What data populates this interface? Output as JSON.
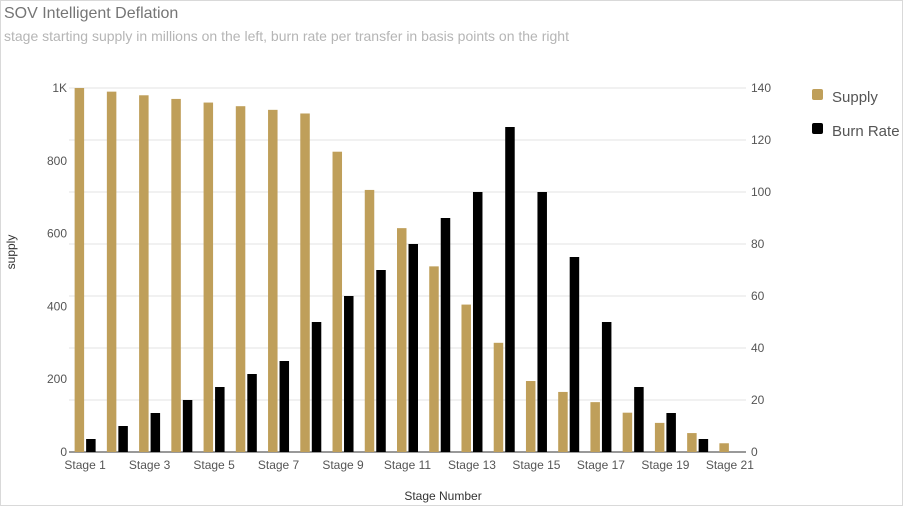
{
  "chart_data": {
    "type": "bar",
    "title": "SOV Intelligent Deflation",
    "subtitle": "stage starting supply in millions on the left, burn rate per transfer in basis points on the right",
    "xlabel": "Stage Number",
    "ylabel": "supply",
    "ylabel_right": "",
    "categories": [
      "Stage 1",
      "Stage 2",
      "Stage 3",
      "Stage 4",
      "Stage 5",
      "Stage 6",
      "Stage 7",
      "Stage 8",
      "Stage 9",
      "Stage 10",
      "Stage 11",
      "Stage 12",
      "Stage 13",
      "Stage 14",
      "Stage 15",
      "Stage 16",
      "Stage 17",
      "Stage 18",
      "Stage 19",
      "Stage 20",
      "Stage 21"
    ],
    "x_tick_labels": [
      "Stage 1",
      "Stage 3",
      "Stage 5",
      "Stage 7",
      "Stage 9",
      "Stage 11",
      "Stage 13",
      "Stage 15",
      "Stage 17",
      "Stage 19",
      "Stage 21"
    ],
    "series": [
      {
        "name": "Supply",
        "axis": "left",
        "color": "#bf9f5a",
        "values": [
          1000,
          990,
          980,
          970,
          960,
          950,
          940,
          930,
          825,
          720,
          615,
          510,
          405,
          300,
          195,
          165,
          137,
          108,
          80,
          52,
          24
        ]
      },
      {
        "name": "Burn Rate",
        "axis": "right",
        "color": "#000000",
        "values": [
          5,
          10,
          15,
          20,
          25,
          30,
          35,
          50,
          60,
          70,
          80,
          90,
          100,
          125,
          100,
          75,
          50,
          25,
          15,
          5,
          null
        ]
      }
    ],
    "ylim": [
      0,
      1000
    ],
    "y_ticks": [
      0,
      200,
      400,
      600,
      800,
      1000
    ],
    "y_tick_labels": [
      "0",
      "200",
      "400",
      "600",
      "800",
      "1K"
    ],
    "ylim_right": [
      0,
      140
    ],
    "y_ticks_right": [
      0,
      20,
      40,
      60,
      80,
      100,
      120,
      140
    ],
    "y_tick_labels_right": [
      "0",
      "20",
      "40",
      "60",
      "80",
      "100",
      "120",
      "140"
    ],
    "grid": true,
    "legend": "right"
  }
}
